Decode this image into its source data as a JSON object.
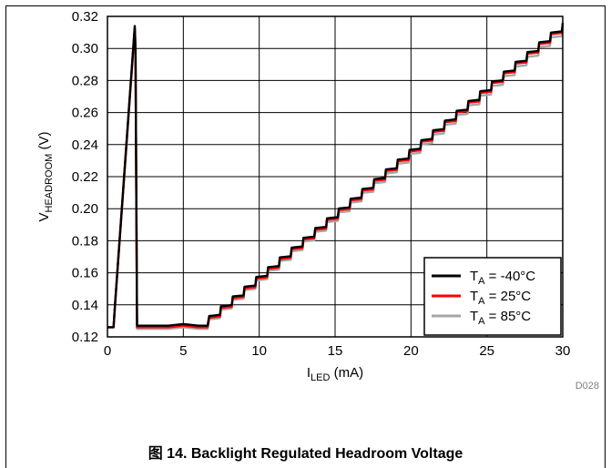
{
  "figure": {
    "caption": "图 14. Backlight Regulated Headroom Voltage",
    "doc_id": "D028"
  },
  "chart_data": {
    "type": "line",
    "xlabel": {
      "main": "I",
      "sub": "LED",
      "rest": " (mA)"
    },
    "ylabel": {
      "main": "V",
      "sub": "HEADROOM",
      "rest": " (V)"
    },
    "xlim": [
      0,
      30
    ],
    "ylim": [
      0.12,
      0.32
    ],
    "x_ticks": [
      0,
      5,
      10,
      15,
      20,
      25,
      30
    ],
    "y_ticks": [
      "0.12",
      "0.14",
      "0.16",
      "0.18",
      "0.20",
      "0.22",
      "0.24",
      "0.26",
      "0.28",
      "0.30",
      "0.32"
    ],
    "grid": true,
    "legend_position": "bottom-right",
    "series": [
      {
        "name_main": "T",
        "name_sub": "A",
        "name_rest": " = -40°C",
        "color": "#000000",
        "step_offset": 0.0017,
        "x": [
          0,
          0.4,
          0.5,
          1.8,
          1.85,
          1.95,
          3,
          4,
          5,
          6,
          6.6,
          6.7,
          30
        ],
        "y": [
          0.126,
          0.126,
          0.14,
          0.314,
          0.3,
          0.127,
          0.127,
          0.127,
          0.128,
          0.127,
          0.127,
          0.133,
          0.316
        ]
      },
      {
        "name_main": "T",
        "name_sub": "A",
        "name_rest": " = 25°C",
        "color": "#ff0000",
        "step_offset": 0,
        "x": [
          0,
          0.4,
          0.5,
          1.8,
          1.85,
          1.95,
          3,
          4,
          5,
          6,
          6.6,
          6.7,
          30
        ],
        "y": [
          0.126,
          0.126,
          0.14,
          0.313,
          0.299,
          0.126,
          0.126,
          0.126,
          0.127,
          0.126,
          0.126,
          0.132,
          0.315
        ]
      },
      {
        "name_main": "T",
        "name_sub": "A",
        "name_rest": " = 85°C",
        "color": "#a6a6a6",
        "step_offset": -0.0017,
        "x": [
          0,
          0.4,
          0.5,
          1.8,
          1.85,
          1.95,
          3,
          4,
          5,
          6,
          6.6,
          6.7,
          30
        ],
        "y": [
          0.126,
          0.126,
          0.14,
          0.311,
          0.297,
          0.125,
          0.125,
          0.125,
          0.126,
          0.125,
          0.125,
          0.131,
          0.313
        ]
      }
    ]
  }
}
